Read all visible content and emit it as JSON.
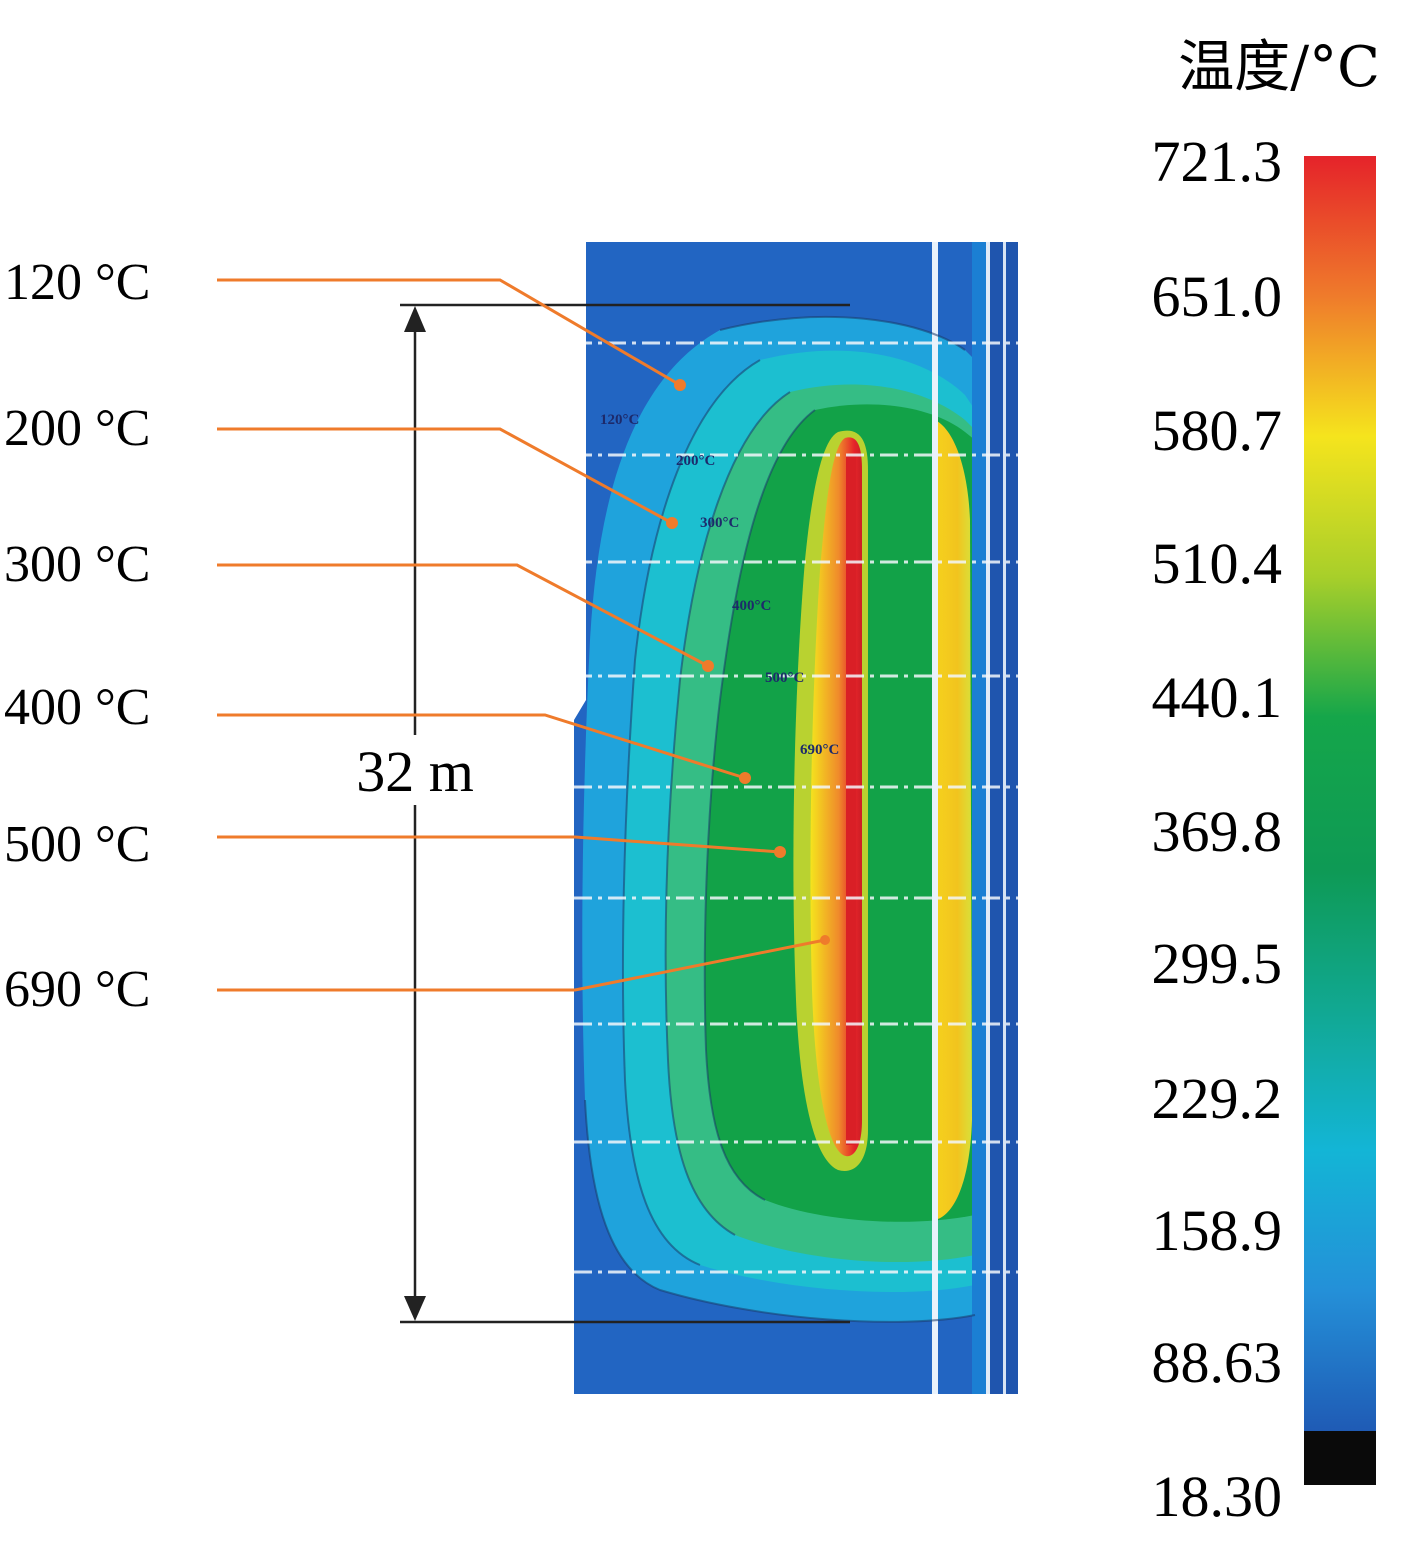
{
  "colorbar": {
    "title": "温度/°C",
    "ticks": [
      "721.3",
      "651.0",
      "580.7",
      "510.4",
      "440.1",
      "369.8",
      "299.5",
      "229.2",
      "158.9",
      "88.63",
      "18.30"
    ],
    "stops": [
      "#e5232a",
      "#ef7b2b",
      "#f5e41d",
      "#a8cf2a",
      "#15a64a",
      "#0e9a55",
      "#11a892",
      "#13b5d6",
      "#2490d8",
      "#1f5bb5"
    ],
    "below_color": "#0a0a0a"
  },
  "isotherms": [
    {
      "label": "120 °C",
      "inner": "120°C"
    },
    {
      "label": "200 °C",
      "inner": "200°C"
    },
    {
      "label": "300 °C",
      "inner": "300°C"
    },
    {
      "label": "400 °C",
      "inner": "400°C"
    },
    {
      "label": "500 °C",
      "inner": "500°C"
    },
    {
      "label": "690 °C",
      "inner": "690°C"
    }
  ],
  "dimension": {
    "label": "32 m"
  },
  "colors": {
    "leader": "#ef7b2b",
    "dim_line": "#222222"
  }
}
